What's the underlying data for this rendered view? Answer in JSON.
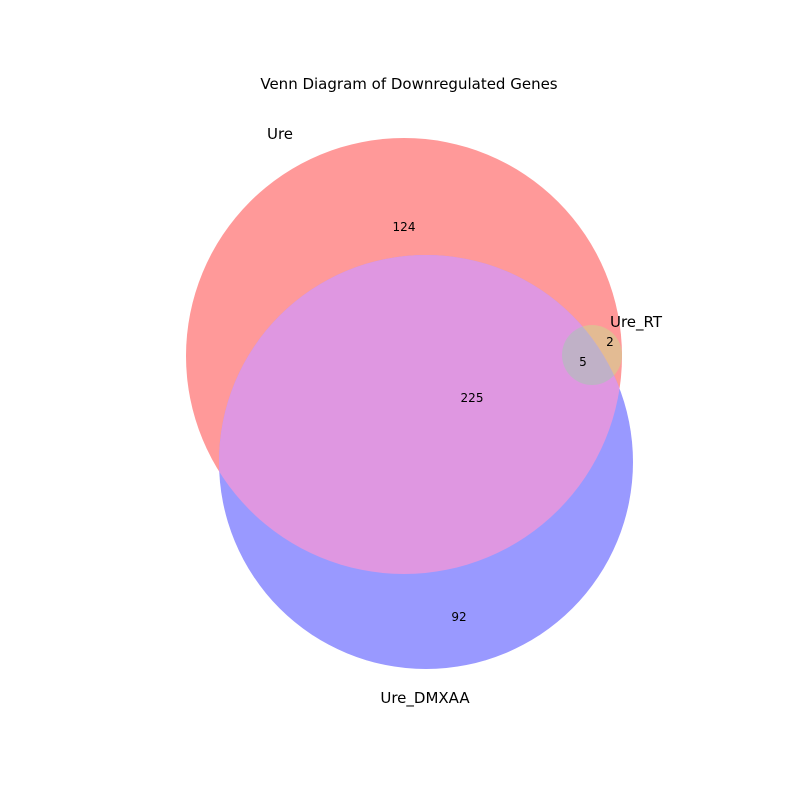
{
  "title": "Venn Diagram of Downregulated Genes",
  "sets": {
    "ure": {
      "label": "Ure",
      "color": "#ff9999"
    },
    "ure_dmxaa": {
      "label": "Ure_DMXAA",
      "color": "#9999ff"
    },
    "ure_rt": {
      "label": "Ure_RT",
      "color": "#e3bb93"
    }
  },
  "overlap_colors": {
    "ure_and_ure_dmxaa": "#df97e1",
    "all_three": "#c0b1c7"
  },
  "regions": {
    "ure_only": "124",
    "ure_and_ure_dmxaa": "225",
    "ure_dmxaa_only": "92",
    "ure_rt_only": "2",
    "all_three": "5"
  }
}
